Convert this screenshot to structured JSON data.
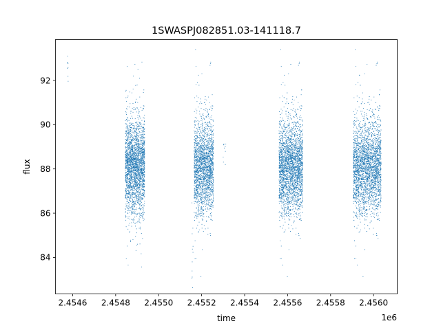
{
  "chart_data": {
    "type": "scatter",
    "title": "1SWASPJ082851.03-141118.7",
    "xlabel": "time",
    "ylabel": "flux",
    "x_offset_label": "1e6",
    "xlim": [
      2454520,
      2456110
    ],
    "ylim": [
      82.35,
      93.85
    ],
    "x_ticks": [
      2454600,
      2454800,
      2455000,
      2455200,
      2455400,
      2455600,
      2455800,
      2456000
    ],
    "x_tick_labels": [
      "2.4546",
      "2.4548",
      "2.4550",
      "2.4552",
      "2.4554",
      "2.4556",
      "2.4558",
      "2.4560"
    ],
    "y_ticks": [
      84,
      86,
      88,
      90,
      92
    ],
    "y_tick_labels": [
      "84",
      "86",
      "88",
      "90",
      "92"
    ],
    "grid": false,
    "legend": "none",
    "marker_color": "#1f77b4",
    "clusters": [
      {
        "x_range": [
          2454575,
          2454580
        ],
        "y_mean": 92.6,
        "y_sd": 0.4,
        "count": 8
      },
      {
        "x_range": [
          2454845,
          2454935
        ],
        "y_mean": 88.1,
        "y_sd": 1.05,
        "count": 2600
      },
      {
        "x_range": [
          2455165,
          2455255
        ],
        "y_mean": 88.1,
        "y_sd": 1.05,
        "count": 2200
      },
      {
        "x_range": [
          2455300,
          2455315
        ],
        "y_mean": 88.9,
        "y_sd": 0.35,
        "count": 10
      },
      {
        "x_range": [
          2455155,
          2455160
        ],
        "y_mean": 84.8,
        "y_sd": 0.9,
        "count": 12
      },
      {
        "x_range": [
          2455560,
          2455670
        ],
        "y_mean": 88.1,
        "y_sd": 1.05,
        "count": 3000
      },
      {
        "x_range": [
          2455905,
          2456035
        ],
        "y_mean": 88.1,
        "y_sd": 1.05,
        "count": 3300
      }
    ]
  }
}
